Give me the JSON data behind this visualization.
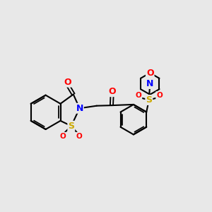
{
  "bg_color": "#e8e8e8",
  "bond_color": "#000000",
  "atom_colors": {
    "O": "#ff0000",
    "N": "#0000ff",
    "S": "#ccaa00",
    "C": "#000000"
  },
  "figsize": [
    3.0,
    3.0
  ],
  "dpi": 100
}
